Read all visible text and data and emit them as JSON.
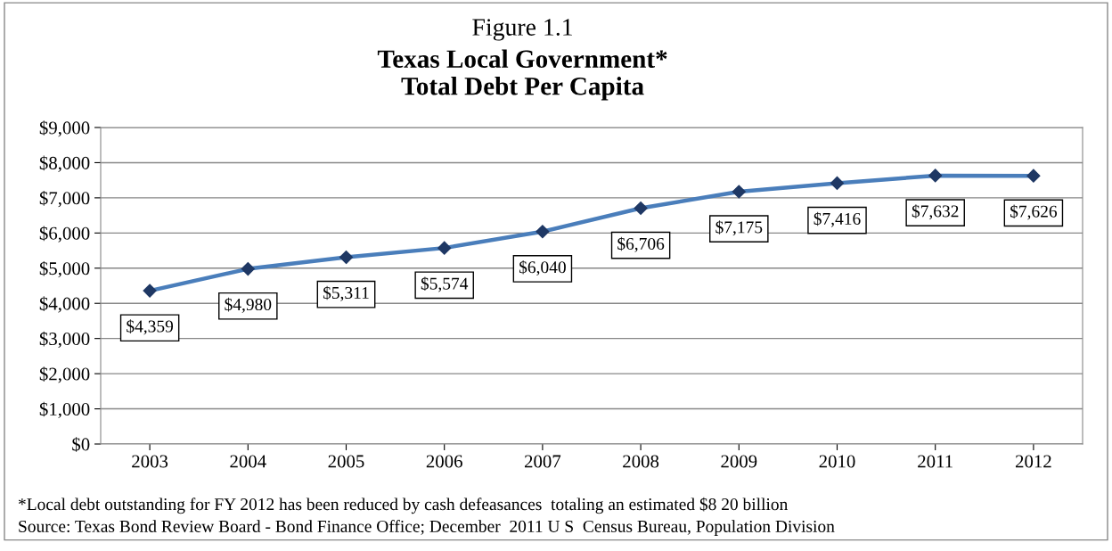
{
  "chart_data": {
    "type": "line",
    "title": "Figure 1.1",
    "subtitle": "Texas Local Government*\nTotal Debt Per Capita",
    "categories": [
      "2003",
      "2004",
      "2005",
      "2006",
      "2007",
      "2008",
      "2009",
      "2010",
      "2011",
      "2012"
    ],
    "series": [
      {
        "color": "#4a7ebb",
        "values": [
          4359,
          4980,
          5311,
          5574,
          6040,
          6706,
          7175,
          7416,
          7632,
          7626
        ]
      }
    ],
    "value_labels": [
      "$4,359",
      "$4,980",
      "$5,311",
      "$5,574",
      "$6,040",
      "$6,706",
      "$7,175",
      "$7,416",
      "$7,632",
      "$7,626"
    ],
    "marker": "diamond",
    "line_style": "solid",
    "grid": "y",
    "ylim": [
      0,
      9000
    ],
    "yticks": [
      {
        "value": 0,
        "label": "$0"
      },
      {
        "value": 1000,
        "label": "$1,000"
      },
      {
        "value": 2000,
        "label": "$2,000"
      },
      {
        "value": 3000,
        "label": "$3,000"
      },
      {
        "value": 4000,
        "label": "$4,000"
      },
      {
        "value": 5000,
        "label": "$5,000"
      },
      {
        "value": 6000,
        "label": "$6,000"
      },
      {
        "value": 7000,
        "label": "$7,000"
      },
      {
        "value": 8000,
        "label": "$8,000"
      },
      {
        "value": 9000,
        "label": "$9,000"
      }
    ],
    "annotations": [
      "*Local debt outstanding for FY 2012 has been reduced by cash defeasances  totaling an estimated $8 20 billion",
      "Source: Texas Bond Review Board - Bond Finance Office; December  2011 U S  Census Bureau, Population Division"
    ]
  }
}
